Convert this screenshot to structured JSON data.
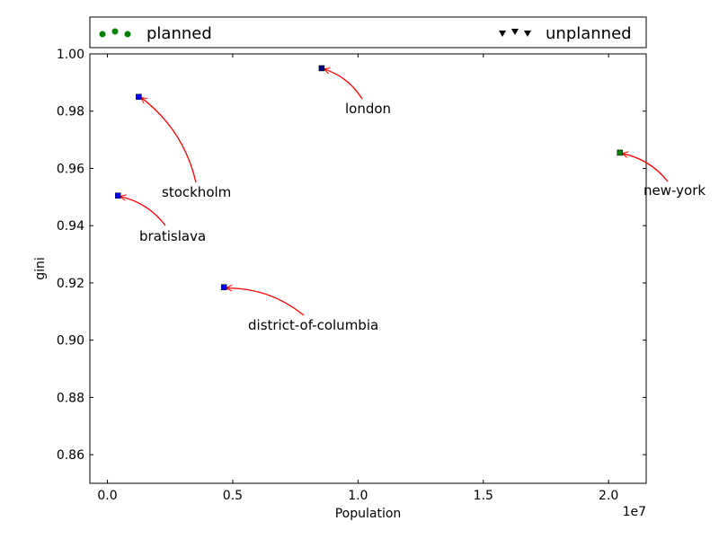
{
  "chart_data": {
    "type": "scatter",
    "xlabel": "Population",
    "ylabel": "gini",
    "x_offset_label": "1e7",
    "xlim": [
      -700000,
      21500000
    ],
    "ylim": [
      0.85,
      1.0
    ],
    "x_ticks": [
      0,
      5000000,
      10000000,
      15000000,
      20000000
    ],
    "x_tick_labels": [
      "0.0",
      "0.5",
      "1.0",
      "1.5",
      "2.0"
    ],
    "y_ticks": [
      0.86,
      0.88,
      0.9,
      0.92,
      0.94,
      0.96,
      0.98,
      1.0
    ],
    "y_tick_labels": [
      "0.86",
      "0.88",
      "0.90",
      "0.92",
      "0.94",
      "0.96",
      "0.98",
      "1.00"
    ],
    "legend": {
      "position": "top, above plot",
      "entries": [
        {
          "label": "planned",
          "marker": "circle",
          "color": "#008000"
        },
        {
          "label": "unplanned",
          "marker": "triangle-down",
          "color": "#000000"
        }
      ]
    },
    "points": [
      {
        "city": "bratislava",
        "population": 420000,
        "gini": 0.9505,
        "color": "#0000ff"
      },
      {
        "city": "stockholm",
        "population": 1250000,
        "gini": 0.985,
        "color": "#0000ff"
      },
      {
        "city": "district-of-columbia",
        "population": 4650000,
        "gini": 0.9185,
        "color": "#0000ff"
      },
      {
        "city": "london",
        "population": 8550000,
        "gini": 0.995,
        "color": "#000080"
      },
      {
        "city": "new-york",
        "population": 20450000,
        "gini": 0.9655,
        "color": "#008000"
      }
    ],
    "annotation_color": "#ff0000"
  }
}
